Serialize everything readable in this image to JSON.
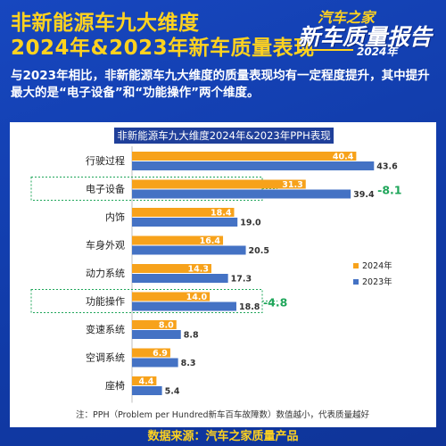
{
  "header": {
    "title_line1": "非新能源车九大维度",
    "title_line2": "2024年&2023年新车质量表现"
  },
  "logo": {
    "brand": "汽车之家",
    "name": "新车质量报告",
    "year": "2024年"
  },
  "description": "与2023年相比，非新能源车九大维度的质量表现均有一定程度提升，其中提升最大的是“电子设备”和“功能操作”两个维度。",
  "footnote": "注：PPH（Problem per Hundred新车百车故障数）数值越小，代表质量越好",
  "source": "数据来源：汽车之家质量产品",
  "colors": {
    "series_2024": "#f7a21b",
    "series_2023": "#4472c4",
    "highlight": "#1fa65a"
  },
  "chart_data": {
    "type": "bar",
    "orientation": "horizontal",
    "title": "非新能源车九大维度2024年&2023年PPH表现",
    "categories": [
      "行驶过程",
      "电子设备",
      "内饰",
      "车身外观",
      "动力系统",
      "功能操作",
      "变速系统",
      "空调系统",
      "座椅"
    ],
    "series": [
      {
        "name": "2024年",
        "values": [
          40.4,
          31.3,
          18.4,
          16.4,
          14.3,
          14.0,
          8.0,
          6.9,
          4.4
        ]
      },
      {
        "name": "2023年",
        "values": [
          43.6,
          39.4,
          19.0,
          20.5,
          17.3,
          18.8,
          8.8,
          8.3,
          5.4
        ]
      }
    ],
    "highlights": [
      {
        "category": "电子设备",
        "label": "-8.1"
      },
      {
        "category": "功能操作",
        "label": "-4.8"
      }
    ],
    "legend_position": "right",
    "xlim": [
      0,
      45
    ]
  }
}
